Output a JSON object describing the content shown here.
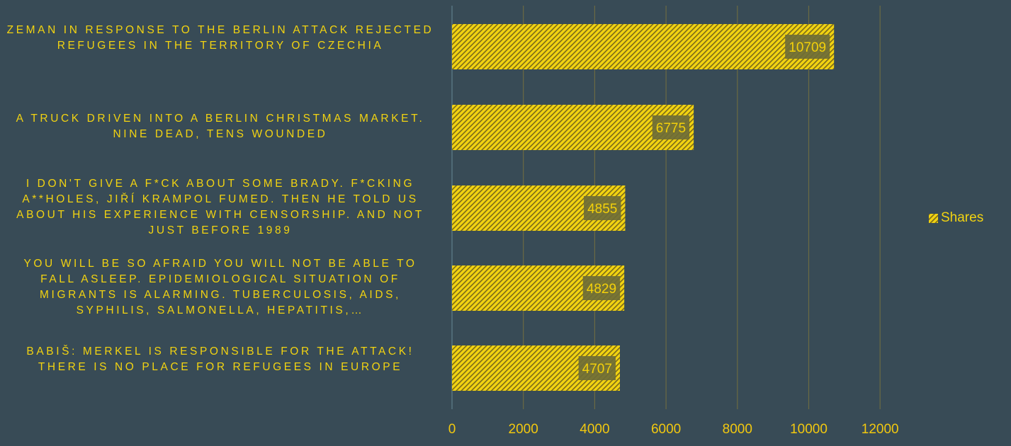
{
  "chart_data": {
    "type": "bar",
    "orientation": "horizontal",
    "categories": [
      "Zeman in response to the Berlin attack rejected refugees in the territory of Czechia",
      "A truck driven into a Berlin Christmas market. Nine dead, tens wounded",
      "I don't give a f*ck about some Brady. F*cking a**holes, Jiří Krampol fumed. Then he told us about his experience with censorship. And not just before 1989",
      "You will be so afraid you will not be able to fall asleep. Epidemiological situation of migrants is alarming. Tuberculosis, AIDS, syphilis, salmonella, hepatitis,…",
      "Babiš: Merkel is responsible for the attack! There is no place for refugees in Europe"
    ],
    "series": [
      {
        "name": "Shares",
        "values": [
          10709,
          6775,
          4855,
          4829,
          4707
        ]
      }
    ],
    "x_ticks": [
      "0",
      "2000",
      "4000",
      "6000",
      "8000",
      "10000",
      "12000"
    ],
    "xlim": [
      0,
      12000
    ],
    "grid": true,
    "legend_position": "right",
    "bar_pattern": "diagonal-hatch",
    "colors": {
      "background": "#384b56",
      "bar": "#f2d311",
      "hatch": "#7a6a1a",
      "text": "#f2d311",
      "gridline": "#6b6a43",
      "axis": "#5f7e8c",
      "data_label_bg": "#6e6d37"
    }
  }
}
